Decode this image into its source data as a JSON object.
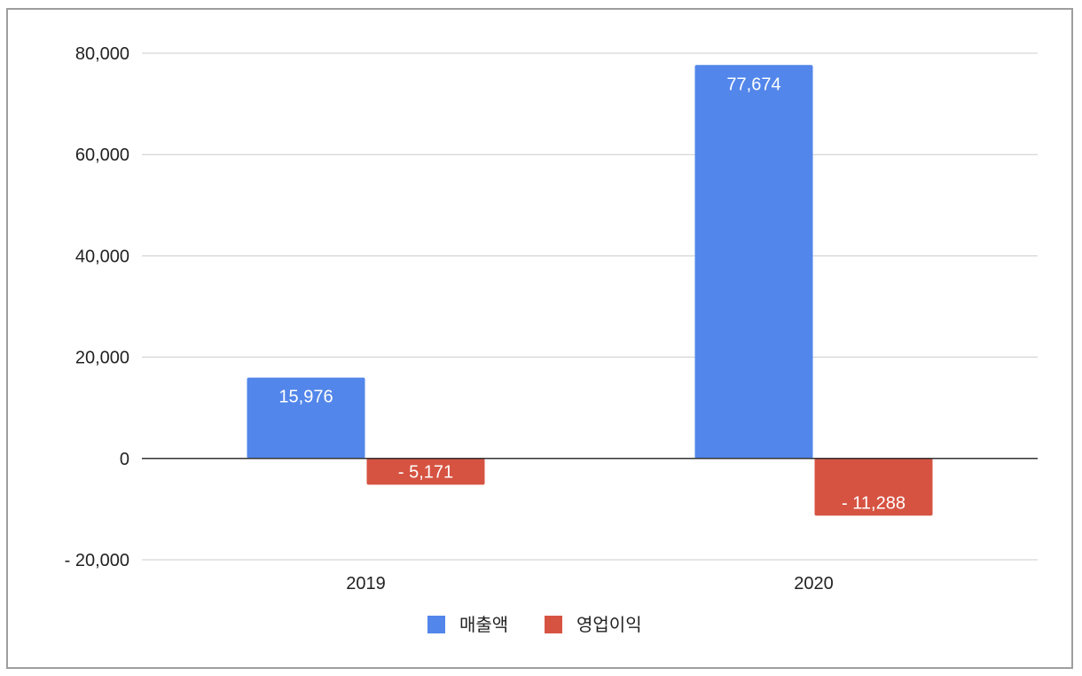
{
  "chart_data": {
    "type": "bar",
    "categories": [
      "2019",
      "2020"
    ],
    "series": [
      {
        "name": "매출액",
        "values": [
          15976,
          77674
        ],
        "labels": [
          "15,976",
          "77,674"
        ],
        "color": "#5286ea"
      },
      {
        "name": "영업이익",
        "values": [
          -5171,
          -11288
        ],
        "labels": [
          "-  5,171",
          "-  11,288"
        ],
        "color": "#d65342"
      }
    ],
    "ylim": [
      -20000,
      80000
    ],
    "yticks": [
      {
        "value": 80000,
        "label": "80,000"
      },
      {
        "value": 60000,
        "label": "60,000"
      },
      {
        "value": 40000,
        "label": "40,000"
      },
      {
        "value": 20000,
        "label": "20,000"
      },
      {
        "value": 0,
        "label": "0"
      },
      {
        "value": -20000,
        "label": "-  20,000"
      }
    ],
    "grid": true,
    "legend": "bottom"
  }
}
